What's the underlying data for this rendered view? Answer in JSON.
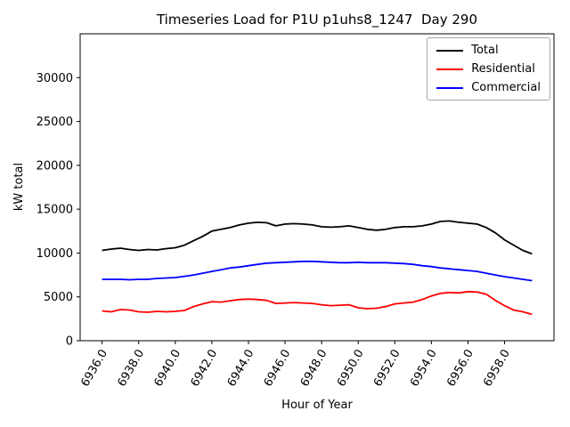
{
  "chart_data": {
    "type": "line",
    "title": "Timeseries Load for P1U p1uhs8_1247  Day 290",
    "xlabel": "Hour of Year",
    "ylabel": "kW total",
    "xlim": [
      6934.8,
      6960.7
    ],
    "ylim": [
      0,
      35000
    ],
    "grid": false,
    "legend_position": "upper right",
    "x_ticks": [
      {
        "value": 6936,
        "label": "6936.0"
      },
      {
        "value": 6938,
        "label": "6938.0"
      },
      {
        "value": 6940,
        "label": "6940.0"
      },
      {
        "value": 6942,
        "label": "6942.0"
      },
      {
        "value": 6944,
        "label": "6944.0"
      },
      {
        "value": 6946,
        "label": "6946.0"
      },
      {
        "value": 6948,
        "label": "6948.0"
      },
      {
        "value": 6950,
        "label": "6950.0"
      },
      {
        "value": 6952,
        "label": "6952.0"
      },
      {
        "value": 6954,
        "label": "6954.0"
      },
      {
        "value": 6956,
        "label": "6956.0"
      },
      {
        "value": 6958,
        "label": "6958.0"
      }
    ],
    "y_ticks": [
      {
        "value": 0,
        "label": "0"
      },
      {
        "value": 5000,
        "label": "5000"
      },
      {
        "value": 10000,
        "label": "10000"
      },
      {
        "value": 15000,
        "label": "15000"
      },
      {
        "value": 20000,
        "label": "20000"
      },
      {
        "value": 25000,
        "label": "25000"
      },
      {
        "value": 30000,
        "label": "30000"
      }
    ],
    "x": [
      6936.0,
      6936.5,
      6937.0,
      6937.5,
      6938.0,
      6938.5,
      6939.0,
      6939.5,
      6940.0,
      6940.5,
      6941.0,
      6941.5,
      6942.0,
      6942.5,
      6943.0,
      6943.5,
      6944.0,
      6944.5,
      6945.0,
      6945.5,
      6946.0,
      6946.5,
      6947.0,
      6947.5,
      6948.0,
      6948.5,
      6949.0,
      6949.5,
      6950.0,
      6950.5,
      6951.0,
      6951.5,
      6952.0,
      6952.5,
      6953.0,
      6953.5,
      6954.0,
      6954.5,
      6955.0,
      6955.5,
      6956.0,
      6956.5,
      6957.0,
      6957.5,
      6958.0,
      6958.5,
      6959.0,
      6959.5
    ],
    "series": [
      {
        "name": "Total",
        "color": "#000000",
        "values": [
          10300,
          10450,
          10550,
          10400,
          10300,
          10400,
          10350,
          10500,
          10600,
          10900,
          11400,
          11900,
          12500,
          12700,
          12900,
          13200,
          13400,
          13500,
          13450,
          13100,
          13300,
          13350,
          13300,
          13200,
          13000,
          12950,
          13000,
          13100,
          12900,
          12700,
          12600,
          12700,
          12900,
          13000,
          13000,
          13100,
          13300,
          13600,
          13650,
          13500,
          13400,
          13300,
          12900,
          12300,
          11500,
          10900,
          10300,
          9900
        ]
      },
      {
        "name": "Residential",
        "color": "#ff0000",
        "values": [
          3400,
          3300,
          3550,
          3500,
          3300,
          3250,
          3350,
          3300,
          3350,
          3450,
          3900,
          4200,
          4450,
          4400,
          4550,
          4700,
          4750,
          4700,
          4600,
          4250,
          4300,
          4350,
          4300,
          4250,
          4100,
          4000,
          4050,
          4100,
          3750,
          3650,
          3700,
          3900,
          4200,
          4300,
          4400,
          4700,
          5100,
          5400,
          5500,
          5450,
          5600,
          5550,
          5300,
          4600,
          4000,
          3500,
          3300,
          3000
        ]
      },
      {
        "name": "Commercial",
        "color": "#0000ff",
        "values": [
          7000,
          7000,
          7000,
          6950,
          7000,
          7000,
          7100,
          7150,
          7200,
          7350,
          7500,
          7700,
          7900,
          8100,
          8300,
          8400,
          8550,
          8700,
          8850,
          8900,
          8950,
          9000,
          9050,
          9050,
          9000,
          8950,
          8900,
          8900,
          8950,
          8900,
          8900,
          8900,
          8850,
          8800,
          8700,
          8550,
          8450,
          8300,
          8200,
          8100,
          8000,
          7900,
          7700,
          7500,
          7300,
          7150,
          7000,
          6850
        ]
      }
    ]
  }
}
